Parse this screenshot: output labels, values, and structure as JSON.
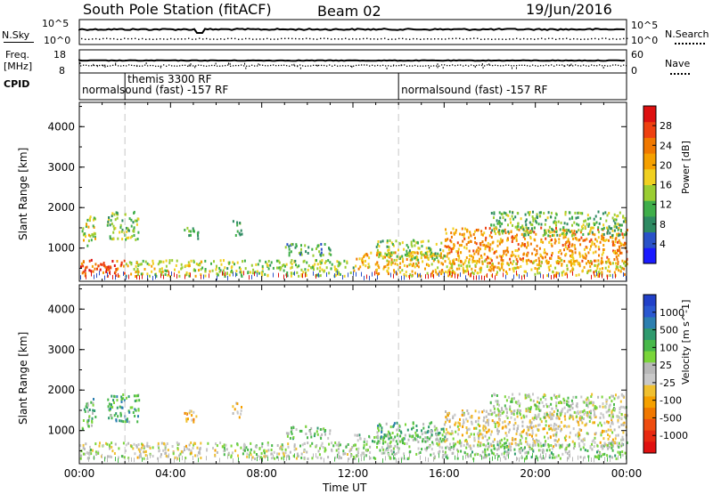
{
  "header": {
    "station": "South Pole Station (fitACF)",
    "beam": "Beam 02",
    "date": "19/Jun/2016"
  },
  "noise_panel": {
    "left_label": "N.Sky",
    "right_label": "N.Search",
    "left_ticks": [
      "10^5",
      "10^0"
    ],
    "right_ticks": [
      "10^5",
      "10^0"
    ]
  },
  "freq_panel": {
    "left_label_line1": "Freq.",
    "left_label_line2": "[MHz]",
    "right_label": "Nave",
    "left_ticks": [
      "18",
      "8"
    ],
    "right_ticks": [
      "60",
      "0"
    ]
  },
  "cpid_panel": {
    "label": "CPID",
    "events": [
      {
        "start_hour": 0.0,
        "text": "normalsound (fast) -157 RF",
        "row": 2
      },
      {
        "start_hour": 2.0,
        "text": "themis 3300 RF",
        "row": 1
      },
      {
        "start_hour": 14.0,
        "text": "normalsound (fast) -157 RF",
        "row": 2
      }
    ]
  },
  "power_panel": {
    "ylabel": "Slant Range [km]",
    "y_ticks": [
      "1000",
      "2000",
      "3000",
      "4000"
    ],
    "colorbar_label": "Power [dB]",
    "colorbar_ticks": [
      "4",
      "8",
      "12",
      "16",
      "20",
      "24",
      "28"
    ],
    "colorbar_colors": [
      "#1a1aff",
      "#2a52c8",
      "#2e8a62",
      "#3fae4a",
      "#9acd32",
      "#f0d020",
      "#f5a000",
      "#f07800",
      "#ee4010",
      "#dd1010"
    ]
  },
  "velocity_panel": {
    "ylabel": "Slant Range [km]",
    "y_ticks": [
      "1000",
      "2000",
      "3000",
      "4000"
    ],
    "colorbar_label": "Velocity [m s^-1]",
    "colorbar_ticks": [
      "1000",
      "500",
      "100",
      "25",
      "-25",
      "-100",
      "-500",
      "-1000"
    ],
    "colorbar_colors": [
      "#2140c8",
      "#2a58d0",
      "#2c7fb0",
      "#2f9a6e",
      "#48b84a",
      "#7ad53a",
      "#b8b8b8",
      "#c8c8c8",
      "#f0c030",
      "#f5a000",
      "#f07800",
      "#ee4c10",
      "#e82810",
      "#e01010"
    ]
  },
  "x_axis": {
    "label": "Time UT",
    "ticks": [
      "00:00",
      "04:00",
      "08:00",
      "12:00",
      "16:00",
      "20:00",
      "00:00"
    ]
  },
  "chart_data": {
    "type": "heatmap",
    "x_unit": "hours UT",
    "y_unit": "km",
    "xlim": [
      0,
      24
    ],
    "ylim": [
      180,
      4600
    ],
    "marker_lines_hours": [
      2.0,
      14.0
    ],
    "series": [
      {
        "name": "Power [dB]",
        "zlim": [
          0,
          32
        ]
      },
      {
        "name": "Velocity [m s^-1]",
        "zlim": [
          -1000,
          1000
        ]
      }
    ],
    "echo_regions": [
      {
        "t0": 0.0,
        "t1": 2.0,
        "r0": 300,
        "r1": 700,
        "power": 26,
        "velocity": 40
      },
      {
        "t0": 0.1,
        "t1": 0.7,
        "r0": 1000,
        "r1": 1800,
        "power": 16,
        "velocity": 300
      },
      {
        "t0": 1.2,
        "t1": 2.6,
        "r0": 1200,
        "r1": 1900,
        "power": 13,
        "velocity": 400
      },
      {
        "t0": 2.0,
        "t1": 6.0,
        "r0": 300,
        "r1": 700,
        "power": 16,
        "velocity": -60
      },
      {
        "t0": 4.5,
        "t1": 5.2,
        "r0": 1200,
        "r1": 1500,
        "power": 12,
        "velocity": -300
      },
      {
        "t0": 6.0,
        "t1": 12.0,
        "r0": 300,
        "r1": 700,
        "power": 14,
        "velocity": 80
      },
      {
        "t0": 6.7,
        "t1": 7.1,
        "r0": 1300,
        "r1": 1700,
        "power": 12,
        "velocity": -150
      },
      {
        "t0": 9.0,
        "t1": 11.0,
        "r0": 800,
        "r1": 1100,
        "power": 10,
        "velocity": 200
      },
      {
        "t0": 12.0,
        "t1": 16.0,
        "r0": 300,
        "r1": 900,
        "power": 20,
        "velocity": 150
      },
      {
        "t0": 13.0,
        "t1": 16.0,
        "r0": 700,
        "r1": 1200,
        "power": 14,
        "velocity": 300
      },
      {
        "t0": 16.0,
        "t1": 24.0,
        "r0": 600,
        "r1": 1500,
        "power": 22,
        "velocity": -80
      },
      {
        "t0": 16.0,
        "t1": 24.0,
        "r0": 300,
        "r1": 700,
        "power": 18,
        "velocity": 200
      },
      {
        "t0": 18.0,
        "t1": 24.0,
        "r0": 1300,
        "r1": 1900,
        "power": 12,
        "velocity": 100
      }
    ]
  }
}
